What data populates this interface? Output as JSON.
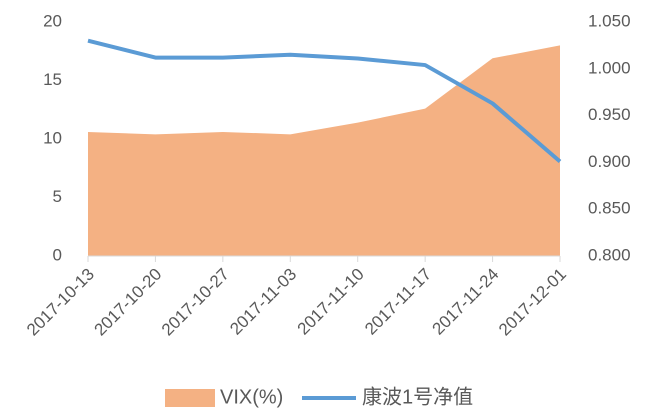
{
  "chart_data": {
    "type": "area_line",
    "categories": [
      "2017-10-13",
      "2017-10-20",
      "2017-10-27",
      "2017-11-03",
      "2017-11-10",
      "2017-11-17",
      "2017-11-24",
      "2017-12-01"
    ],
    "series": [
      {
        "name": "VIX(%)",
        "type": "area",
        "color": "#f4b183",
        "values": [
          10.6,
          10.4,
          10.6,
          10.4,
          11.4,
          12.6,
          16.9,
          18.0
        ]
      },
      {
        "name": "康波1号净值",
        "type": "line",
        "axis": "y2",
        "color": "#5b9bd5",
        "values": [
          1.03,
          1.012,
          1.012,
          1.015,
          1.011,
          1.004,
          0.963,
          0.901
        ]
      }
    ],
    "ylim": [
      0,
      20
    ],
    "yticks": [
      0,
      5,
      10,
      15,
      20
    ],
    "y2lim": [
      0.8,
      1.05
    ],
    "y2ticks": [
      {
        "value": 0.8,
        "label": "0.800"
      },
      {
        "value": 0.85,
        "label": "0.850"
      },
      {
        "value": 0.9,
        "label": "0.900"
      },
      {
        "value": 0.95,
        "label": "0.950"
      },
      {
        "value": 1.0,
        "label": "1.000"
      },
      {
        "value": 1.05,
        "label": "1.050"
      }
    ],
    "legend": "bottom"
  }
}
